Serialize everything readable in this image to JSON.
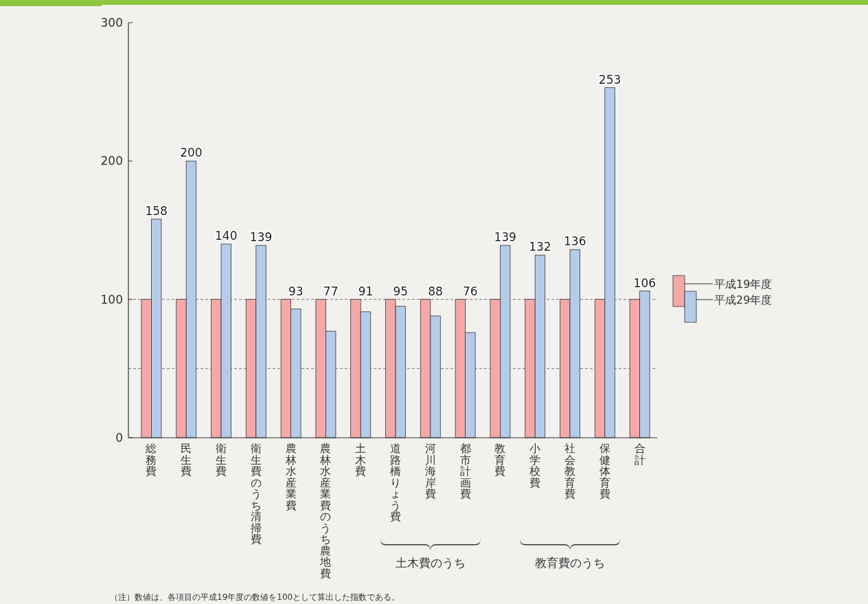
{
  "chart_data": {
    "type": "bar",
    "categories": [
      "総務費",
      "民生費",
      "衛生費",
      "衛生費のうち清掃費",
      "農林水産業費",
      "農林水産業費のうち農地費",
      "土木費",
      "道路橋りょう費",
      "河川海岸費",
      "都市計画費",
      "教育費",
      "小学校費",
      "社会教育費",
      "保健体育費",
      "合計"
    ],
    "series": [
      {
        "name": "平成19年度",
        "color": "#f4a9a8",
        "values": [
          100,
          100,
          100,
          100,
          100,
          100,
          100,
          100,
          100,
          100,
          100,
          100,
          100,
          100,
          100
        ]
      },
      {
        "name": "平成29年度",
        "color": "#b4cce9",
        "values": [
          158,
          200,
          140,
          139,
          93,
          77,
          91,
          95,
          88,
          76,
          139,
          132,
          136,
          253,
          106
        ],
        "value_labels": [
          "158",
          "200",
          "140",
          "139",
          "93",
          "77",
          "91",
          "95",
          "88",
          "76",
          "139",
          "132",
          "136",
          "253",
          "106"
        ]
      }
    ],
    "ylim": [
      0,
      300
    ],
    "yticks": [
      0,
      100,
      200,
      300
    ],
    "ref_lines": [
      {
        "axis": "y",
        "value": 50,
        "line_style": "dashed"
      },
      {
        "axis": "y",
        "value": 100,
        "line_style": "dashed"
      }
    ],
    "legend": "right",
    "grid": false,
    "annotations": [
      "土木費のうち",
      "教育費のうち",
      "（注）数値は、各項目の平成19年度の数値を100として算出した指数である。"
    ]
  }
}
